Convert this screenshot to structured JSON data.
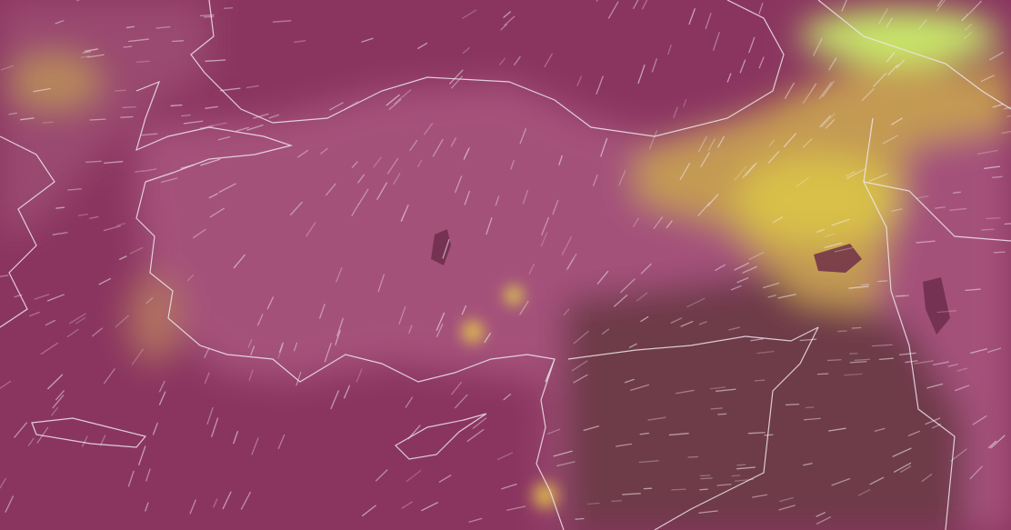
{
  "map": {
    "layer": "heat-overlay",
    "colors": {
      "sea": "#8a3560",
      "land": "#a4517a",
      "dry_land": "#6e3a48",
      "hot": "#d8c04a",
      "very_hot": "#c8e86a",
      "coastline": "#f0e6ee",
      "wind_particles": "#f4eaf2"
    }
  }
}
